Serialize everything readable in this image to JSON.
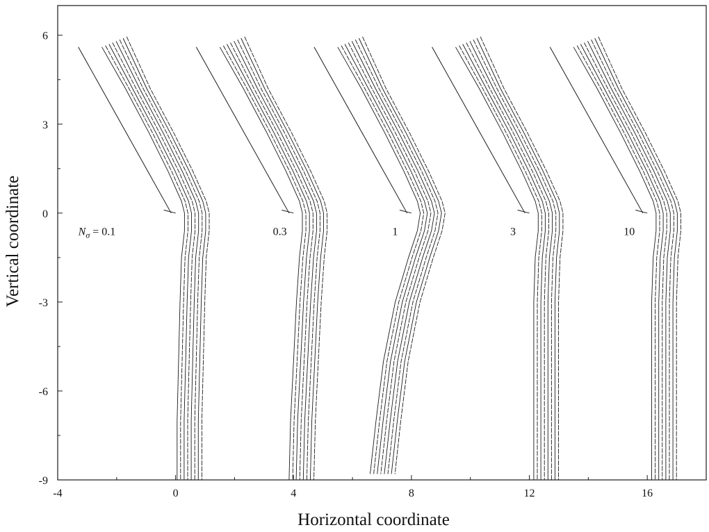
{
  "chart_data": {
    "type": "line",
    "title": "",
    "xlabel": "Horizontal coordinate",
    "ylabel": "Vertical coordinate",
    "xlim": [
      -4,
      18
    ],
    "ylim": [
      -9,
      7
    ],
    "xticks": [
      -4,
      0,
      4,
      8,
      12,
      16
    ],
    "xtick_labels": [
      "-4",
      "0",
      "4",
      "8",
      "12",
      "16"
    ],
    "yticks": [
      -9,
      -6,
      -3,
      0,
      3,
      6
    ],
    "ytick_labels": [
      "-9",
      "-6",
      "-3",
      "0",
      "3",
      "6"
    ],
    "grid": false,
    "legend": "none",
    "line_color": "#1a1a1a",
    "panels": [
      {
        "label_prefix": "N",
        "label_subscript": "σ",
        "label_value": "= 0.1",
        "label_position": [
          -3.3,
          -0.6
        ],
        "label_anchor": "start",
        "label_x": -3.3,
        "label_y": -0.6,
        "n_profiles": 8,
        "profile_spacing": 0.12,
        "reference_line": [
          [
            -3.3,
            5.6
          ],
          [
            -0.15,
            0
          ]
        ],
        "hook": [
          [
            -0.4,
            0.1
          ],
          [
            0.0,
            0
          ]
        ],
        "profile": [
          [
            -2.5,
            5.6
          ],
          [
            -1.7,
            4.2
          ],
          [
            -0.9,
            2.7
          ],
          [
            -0.25,
            1.4
          ],
          [
            0.2,
            0.4
          ],
          [
            0.3,
            0
          ],
          [
            0.3,
            -0.6
          ],
          [
            0.2,
            -1.5
          ],
          [
            0.15,
            -3.0
          ],
          [
            0.1,
            -5.0
          ],
          [
            0.05,
            -7.0
          ],
          [
            0.05,
            -9.0
          ]
        ]
      },
      {
        "label_value": "0.3",
        "label_position": [
          3.3,
          -0.6
        ],
        "label_anchor": "start",
        "label_x": 3.3,
        "label_y": -0.6,
        "n_profiles": 8,
        "profile_spacing": 0.12,
        "reference_line": [
          [
            0.7,
            5.6
          ],
          [
            3.85,
            0
          ]
        ],
        "hook": [
          [
            3.6,
            0.1
          ],
          [
            4.0,
            0
          ]
        ],
        "profile": [
          [
            1.5,
            5.6
          ],
          [
            2.3,
            4.2
          ],
          [
            3.1,
            2.7
          ],
          [
            3.75,
            1.4
          ],
          [
            4.2,
            0.4
          ],
          [
            4.3,
            0
          ],
          [
            4.3,
            -0.6
          ],
          [
            4.2,
            -1.5
          ],
          [
            4.1,
            -3.0
          ],
          [
            4.0,
            -5.0
          ],
          [
            3.9,
            -7.0
          ],
          [
            3.85,
            -9.0
          ]
        ]
      },
      {
        "label_value": "1",
        "label_position": [
          7.35,
          -0.6
        ],
        "label_anchor": "start",
        "label_x": 7.35,
        "label_y": -0.6,
        "n_profiles": 8,
        "profile_spacing": 0.12,
        "reference_line": [
          [
            4.7,
            5.6
          ],
          [
            7.85,
            0
          ]
        ],
        "hook": [
          [
            7.6,
            0.1
          ],
          [
            8.0,
            0
          ]
        ],
        "profile": [
          [
            5.5,
            5.6
          ],
          [
            6.3,
            4.2
          ],
          [
            7.1,
            2.7
          ],
          [
            7.75,
            1.4
          ],
          [
            8.2,
            0.4
          ],
          [
            8.3,
            0
          ],
          [
            8.2,
            -0.6
          ],
          [
            7.9,
            -1.5
          ],
          [
            7.45,
            -3.0
          ],
          [
            7.05,
            -5.0
          ],
          [
            6.8,
            -7.0
          ],
          [
            6.6,
            -8.8
          ]
        ]
      },
      {
        "label_value": "3",
        "label_position": [
          11.35,
          -0.6
        ],
        "label_anchor": "start",
        "label_x": 11.35,
        "label_y": -0.6,
        "n_profiles": 8,
        "profile_spacing": 0.12,
        "reference_line": [
          [
            8.7,
            5.6
          ],
          [
            11.85,
            0
          ]
        ],
        "hook": [
          [
            11.6,
            0.1
          ],
          [
            12.0,
            0
          ]
        ],
        "profile": [
          [
            9.5,
            5.6
          ],
          [
            10.3,
            4.2
          ],
          [
            11.1,
            2.7
          ],
          [
            11.75,
            1.4
          ],
          [
            12.2,
            0.4
          ],
          [
            12.3,
            0
          ],
          [
            12.3,
            -0.6
          ],
          [
            12.2,
            -1.5
          ],
          [
            12.15,
            -3.0
          ],
          [
            12.15,
            -5.0
          ],
          [
            12.15,
            -7.0
          ],
          [
            12.15,
            -9.0
          ]
        ]
      },
      {
        "label_value": "10",
        "label_position": [
          15.2,
          -0.6
        ],
        "label_anchor": "start",
        "label_x": 15.2,
        "label_y": -0.6,
        "n_profiles": 8,
        "profile_spacing": 0.12,
        "reference_line": [
          [
            12.7,
            5.6
          ],
          [
            15.85,
            0
          ]
        ],
        "hook": [
          [
            15.6,
            0.1
          ],
          [
            16.0,
            0
          ]
        ],
        "profile": [
          [
            13.5,
            5.6
          ],
          [
            14.3,
            4.2
          ],
          [
            15.1,
            2.7
          ],
          [
            15.75,
            1.4
          ],
          [
            16.2,
            0.4
          ],
          [
            16.3,
            0
          ],
          [
            16.3,
            -0.6
          ],
          [
            16.2,
            -1.5
          ],
          [
            16.15,
            -3.0
          ],
          [
            16.15,
            -5.0
          ],
          [
            16.15,
            -7.0
          ],
          [
            16.15,
            -9.0
          ]
        ]
      }
    ]
  }
}
